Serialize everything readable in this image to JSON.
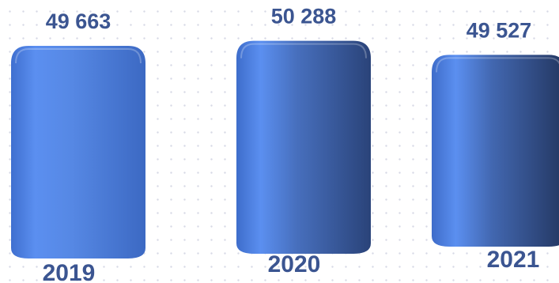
{
  "chart_data": {
    "type": "bar",
    "categories": [
      "2019",
      "2020",
      "2021"
    ],
    "values": [
      49663,
      50288,
      49527
    ],
    "value_labels": [
      "49 663",
      "50 288",
      "49 527"
    ],
    "title": "",
    "xlabel": "",
    "ylabel": "",
    "grid": false,
    "legend": "none",
    "colors": {
      "bar_highlight": "#5b8ff0",
      "bar_dark": "#22335a",
      "label": "#3b5591"
    }
  }
}
